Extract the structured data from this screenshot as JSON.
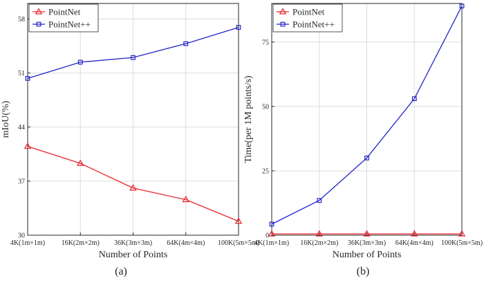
{
  "chart_data": [
    {
      "type": "line",
      "panel_label": "(a)",
      "xlabel": "Number of Points",
      "ylabel": "mIoU(%)",
      "categories": [
        "4K(1m×1m)",
        "16K(2m×2m)",
        "36K(3m×3m)",
        "64K(4m×4m)",
        "100K(5m×5m)"
      ],
      "ylim": [
        30,
        60
      ],
      "yticks": [
        "30",
        "37",
        "44",
        "51",
        "58"
      ],
      "grid": true,
      "legend_position": "top-left",
      "series": [
        {
          "name": "PointNet",
          "marker": "triangle",
          "color": "#e8242b",
          "values": [
            41.5,
            39.3,
            36.1,
            34.6,
            31.8
          ]
        },
        {
          "name": "PointNet++",
          "marker": "square",
          "color": "#2323c8",
          "values": [
            50.3,
            52.4,
            53.0,
            54.8,
            56.9
          ]
        }
      ]
    },
    {
      "type": "line",
      "panel_label": "(b)",
      "xlabel": "Number of Points",
      "ylabel": "Time(per 1M points/s)",
      "categories": [
        "4K(1m×1m)",
        "16K(2m×2m)",
        "36K(3m×3m)",
        "64K(4m×4m)",
        "100K(5m×5m)"
      ],
      "ylim": [
        0,
        90
      ],
      "yticks": [
        "0",
        "25",
        "50",
        "75"
      ],
      "grid": true,
      "legend_position": "top-left",
      "series": [
        {
          "name": "PointNet",
          "marker": "triangle",
          "color": "#e8242b",
          "values": [
            0.5,
            0.5,
            0.5,
            0.5,
            0.5
          ]
        },
        {
          "name": "PointNet++",
          "marker": "square",
          "color": "#2323c8",
          "values": [
            4.3,
            13.5,
            30.0,
            53.0,
            89.0
          ]
        }
      ]
    }
  ]
}
